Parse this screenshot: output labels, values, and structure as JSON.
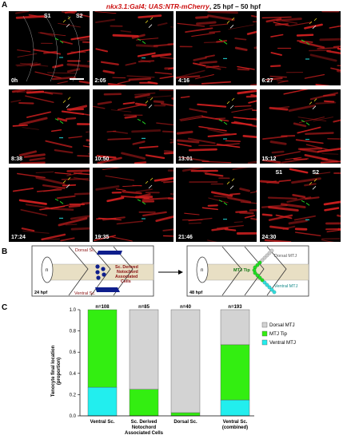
{
  "panel_a": {
    "letter": "A",
    "title_genotype": "nkx3.1:Gal4; UAS:NTR-mCherry",
    "title_range": ", 25 hpf – 50 hpf",
    "timepoints": [
      "0h",
      "2:05",
      "4:16",
      "6:27",
      "8:38",
      "10:50",
      "13:01",
      "15:12",
      "17:24",
      "19:35",
      "21:46",
      "24:30"
    ],
    "somite_labels": [
      "S1",
      "S2"
    ],
    "colors": {
      "background": "#000000",
      "muscle": "#d42020",
      "tip": "#22cc22",
      "ventral": "#22dddd",
      "dorsal": "#ddcc22"
    }
  },
  "panel_b": {
    "letter": "B",
    "left": {
      "notochord_label": "n",
      "dorsal_label": "Dorsal Sc.",
      "ventral_label": "Ventral Sc.",
      "assoc_label": [
        "Sc. Derived",
        "Notochord",
        "Associated",
        "Cells"
      ],
      "time": "24 hpf"
    },
    "right": {
      "notochord_label": "n",
      "dorsal_label": "Dorsal MTJ",
      "tip_label": "MTJ Tip",
      "ventral_label": "Ventral MTJ",
      "time": "48 hpf"
    }
  },
  "panel_c": {
    "letter": "C",
    "ylabel": [
      "Tenocyte final location",
      "(proportion)"
    ]
  },
  "chart_data": {
    "type": "bar",
    "stacked": true,
    "categories": [
      "Ventral Sc.",
      "Sc. Derived Notochord Associated Cells",
      "Dorsal Sc.",
      "Ventral Sc. (combined)"
    ],
    "category_lines": [
      [
        "Ventral Sc."
      ],
      [
        "Sc. Derived",
        "Notochord",
        "Associated Cells"
      ],
      [
        "Dorsal Sc."
      ],
      [
        "Ventral Sc.",
        "(combined)"
      ]
    ],
    "n_labels": [
      "n=108",
      "n=85",
      "n=40",
      "n=193"
    ],
    "series": [
      {
        "name": "Ventral MTJ",
        "color": "#22eeee",
        "values": [
          0.27,
          0.0,
          0.0,
          0.15
        ]
      },
      {
        "name": "MTJ Tip",
        "color": "#33ee11",
        "values": [
          0.73,
          0.25,
          0.03,
          0.52
        ]
      },
      {
        "name": "Dorsal MTJ",
        "color": "#d3d3d3",
        "values": [
          0.0,
          0.75,
          0.97,
          0.33
        ]
      }
    ],
    "legend_order": [
      "Dorsal MTJ",
      "MTJ Tip",
      "Ventral MTJ"
    ],
    "ylim": [
      0,
      1.0
    ],
    "yticks": [
      "0.0",
      "0.2",
      "0.4",
      "0.6",
      "0.8",
      "1.0"
    ],
    "legend_position": "right"
  }
}
